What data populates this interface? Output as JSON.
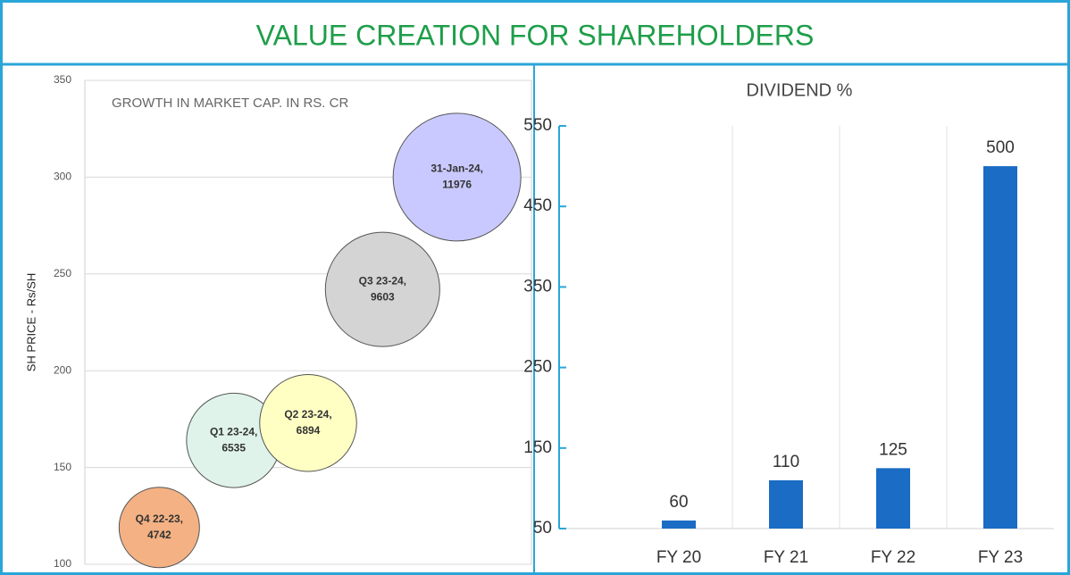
{
  "title": "VALUE CREATION FOR SHAREHOLDERS",
  "chart_data": [
    {
      "type": "bubble",
      "title": "GROWTH IN MARKET CAP.  IN RS. CR",
      "ylabel": "SH PRICE - Rs/SH",
      "labels": [
        "Q4 22-23,",
        "Q1 23-24,",
        "Q2 23-24,",
        "Q3 23-24,",
        "31-Jan-24,"
      ],
      "x": [
        1,
        2,
        3,
        4,
        5
      ],
      "xlim": [
        0,
        6
      ],
      "values": [
        119,
        164,
        173,
        242,
        300
      ],
      "sizes": [
        4742,
        6535,
        6894,
        9603,
        11976
      ],
      "colors": [
        "#f4b183",
        "#dff3ea",
        "#ffffc4",
        "#d4d4d4",
        "#c9c9ff"
      ],
      "ylim": [
        100,
        350
      ],
      "yticks": [
        100,
        150,
        200,
        250,
        300,
        350
      ],
      "grid": true
    },
    {
      "type": "bar",
      "title": "DIVIDEND %",
      "categories": [
        "FY 20",
        "FY 21",
        "FY 22",
        "FY 23"
      ],
      "values": [
        60,
        110,
        125,
        500
      ],
      "color": "#1a6cc4",
      "ylim": [
        50,
        550
      ],
      "yticks": [
        50,
        150,
        250,
        350,
        450,
        550
      ],
      "grid": true
    }
  ]
}
